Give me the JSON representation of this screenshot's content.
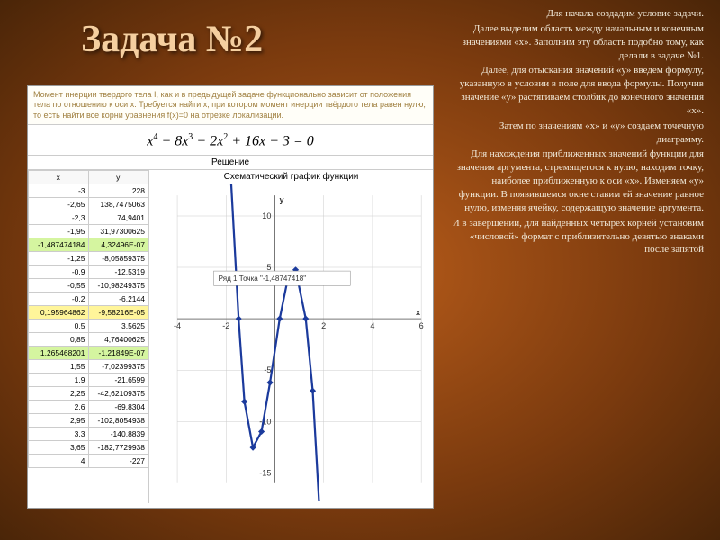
{
  "title": "Задача №2",
  "right_paragraphs": [
    "Для начала создадим условие задачи.",
    "Далее выделим область между начальным и конечным значениями «x». Заполним эту область подобно тому, как делали в задаче №1.",
    "Далее, для отыскания значений «y» введем формулу, указанную в условии в поле для ввода формулы. Получив значение «y» растягиваем столбик до конечного значения «x».",
    "Затем по значениям «x» и «y» создаем точечную диаграмму.",
    "Для нахождения приближенных значений функции для значения аргумента, стремящегося к нулю, находим точку, наиболее приближенную к оси «x». Изменяем «y» функции. В появившемся окне ставим ей значение равное нулю, изменяя ячейку, содержащую значение аргумента.",
    "И в завершении, для найденных четырех корней установим «числовой» формат с приблизительно девятью знаками после запятой"
  ],
  "problem": "Момент инерции твердого тела I, как и в предыдущей задаче функционально зависит от положения тела по отношению к оси x. Требуется найти x, при котором момент инерции твёрдого тела равен нулю, то есть найти все корни уравнения f(x)=0 на отрезке локализации.",
  "formula_html": "x<sup>4</sup> − 8x<sup>3</sup> − 2x<sup>2</sup> + 16x − 3 = 0",
  "solution_label": "Решение",
  "chart_title": "Схематический график функции",
  "table": {
    "headers": [
      "x",
      "y"
    ],
    "rows": [
      {
        "x": "-3",
        "y": "228",
        "cls": ""
      },
      {
        "x": "-2,65",
        "y": "138,7475063",
        "cls": ""
      },
      {
        "x": "-2,3",
        "y": "74,9401",
        "cls": ""
      },
      {
        "x": "-1,95",
        "y": "31,97300625",
        "cls": ""
      },
      {
        "x": "-1,487474184",
        "y": "4,32496E-07",
        "cls": "hl-green"
      },
      {
        "x": "-1,25",
        "y": "-8,05859375",
        "cls": ""
      },
      {
        "x": "-0,9",
        "y": "-12,5319",
        "cls": ""
      },
      {
        "x": "-0,55",
        "y": "-10,98249375",
        "cls": ""
      },
      {
        "x": "-0,2",
        "y": "-6,2144",
        "cls": ""
      },
      {
        "x": "0,195964862",
        "y": "-9,58216E-05",
        "cls": "hl-yellow"
      },
      {
        "x": "0,5",
        "y": "3,5625",
        "cls": ""
      },
      {
        "x": "0,85",
        "y": "4,76400625",
        "cls": ""
      },
      {
        "x": "1,265468201",
        "y": "-1,21849E-07",
        "cls": "hl-green"
      },
      {
        "x": "1,55",
        "y": "-7,02399375",
        "cls": ""
      },
      {
        "x": "1,9",
        "y": "-21,6599",
        "cls": ""
      },
      {
        "x": "2,25",
        "y": "-42,62109375",
        "cls": ""
      },
      {
        "x": "2,6",
        "y": "-69,8304",
        "cls": ""
      },
      {
        "x": "2,95",
        "y": "-102,8054938",
        "cls": ""
      },
      {
        "x": "3,3",
        "y": "-140,8839",
        "cls": ""
      },
      {
        "x": "3,65",
        "y": "-182,7729938",
        "cls": ""
      },
      {
        "x": "4",
        "y": "-227",
        "cls": ""
      }
    ]
  },
  "chart": {
    "xlim": [
      -4,
      6
    ],
    "ylim": [
      -16,
      12
    ],
    "xticks": [
      -4,
      -2,
      2,
      4,
      6
    ],
    "yticks": [
      -15,
      -10,
      -5,
      5,
      10
    ],
    "axis_x_label": "x",
    "axis_y_label": "y",
    "legend": "Ряд 1 Точка \"-1,48747418\"",
    "curve_color": "#1b3a9c",
    "points": [
      {
        "x": -3.0,
        "y": 228
      },
      {
        "x": -2.65,
        "y": 138.75
      },
      {
        "x": -2.3,
        "y": 74.94
      },
      {
        "x": -1.95,
        "y": 31.97
      },
      {
        "x": -1.487,
        "y": 0
      },
      {
        "x": -1.25,
        "y": -8.06
      },
      {
        "x": -0.9,
        "y": -12.53
      },
      {
        "x": -0.55,
        "y": -10.98
      },
      {
        "x": -0.2,
        "y": -6.21
      },
      {
        "x": 0.196,
        "y": 0
      },
      {
        "x": 0.5,
        "y": 3.56
      },
      {
        "x": 0.85,
        "y": 4.76
      },
      {
        "x": 1.265,
        "y": 0
      },
      {
        "x": 1.55,
        "y": -7.02
      },
      {
        "x": 1.9,
        "y": -21.66
      },
      {
        "x": 2.25,
        "y": -42.62
      },
      {
        "x": 2.6,
        "y": -69.83
      },
      {
        "x": 2.95,
        "y": -102.8
      },
      {
        "x": 3.3,
        "y": -140.88
      },
      {
        "x": 3.65,
        "y": -182.77
      },
      {
        "x": 4,
        "y": -227
      }
    ]
  }
}
